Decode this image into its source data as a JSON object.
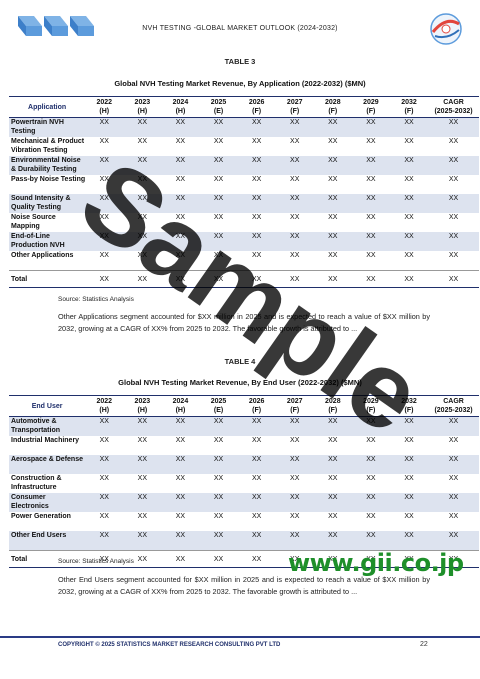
{
  "header": {
    "title": "NVH TESTING -GLOBAL MARKET OUTLOOK (2024-2032)"
  },
  "table3": {
    "label": "TABLE 3",
    "title": "Global NVH Testing Market Revenue, By Application (2022-2032) ($MN)",
    "first_header": "Application",
    "columns": [
      [
        "2022",
        "(H)"
      ],
      [
        "2023",
        "(H)"
      ],
      [
        "2024",
        "(H)"
      ],
      [
        "2025",
        "(E)"
      ],
      [
        "2026",
        "(F)"
      ],
      [
        "2027",
        "(F)"
      ],
      [
        "2028",
        "(F)"
      ],
      [
        "2029",
        "(F)"
      ],
      [
        "2032",
        "(F)"
      ],
      [
        "CAGR",
        "(2025-2032)"
      ]
    ],
    "rows": [
      [
        "Powertrain NVH Testing",
        "XX",
        "XX",
        "XX",
        "XX",
        "XX",
        "XX",
        "XX",
        "XX",
        "XX",
        "XX"
      ],
      [
        "Mechanical & Product Vibration Testing",
        "XX",
        "XX",
        "XX",
        "XX",
        "XX",
        "XX",
        "XX",
        "XX",
        "XX",
        "XX"
      ],
      [
        "Environmental Noise & Durability Testing",
        "XX",
        "XX",
        "XX",
        "XX",
        "XX",
        "XX",
        "XX",
        "XX",
        "XX",
        "XX"
      ],
      [
        "Pass-by Noise Testing",
        "XX",
        "XX",
        "XX",
        "XX",
        "XX",
        "XX",
        "XX",
        "XX",
        "XX",
        "XX"
      ],
      [
        "Sound Intensity & Quality Testing",
        "XX",
        "XX",
        "XX",
        "XX",
        "XX",
        "XX",
        "XX",
        "XX",
        "XX",
        "XX"
      ],
      [
        "Noise Source Mapping",
        "XX",
        "XX",
        "XX",
        "XX",
        "XX",
        "XX",
        "XX",
        "XX",
        "XX",
        "XX"
      ],
      [
        "End-of-Line Production NVH",
        "XX",
        "XX",
        "XX",
        "XX",
        "XX",
        "XX",
        "XX",
        "XX",
        "XX",
        "XX"
      ],
      [
        "Other Applications",
        "XX",
        "XX",
        "XX",
        "XX",
        "XX",
        "XX",
        "XX",
        "XX",
        "XX",
        "XX"
      ]
    ],
    "total": [
      "Total",
      "XX",
      "XX",
      "XX",
      "XX",
      "XX",
      "XX",
      "XX",
      "XX",
      "XX",
      "XX"
    ],
    "source": "Source: Statistics Analysis",
    "paragraph": "Other Applications segment accounted for $XX million in 2025 and is expected to reach a value of $XX million by 2032, growing at a CAGR of XX% from 2025 to 2032. The favorable growth is attributed to ..."
  },
  "table4": {
    "label": "TABLE 4",
    "title": "Global NVH Testing Market Revenue, By End User (2022-2032) ($MN)",
    "first_header": "End User",
    "columns": [
      [
        "2022",
        "(H)"
      ],
      [
        "2023",
        "(H)"
      ],
      [
        "2024",
        "(H)"
      ],
      [
        "2025",
        "(E)"
      ],
      [
        "2026",
        "(F)"
      ],
      [
        "2027",
        "(F)"
      ],
      [
        "2028",
        "(F)"
      ],
      [
        "2029",
        "(F)"
      ],
      [
        "2032",
        "(F)"
      ],
      [
        "CAGR",
        "(2025-2032)"
      ]
    ],
    "rows": [
      [
        "Automotive & Transportation",
        "XX",
        "XX",
        "XX",
        "XX",
        "XX",
        "XX",
        "XX",
        "XX",
        "XX",
        "XX"
      ],
      [
        "Industrial Machinery",
        "XX",
        "XX",
        "XX",
        "XX",
        "XX",
        "XX",
        "XX",
        "XX",
        "XX",
        "XX"
      ],
      [
        "Aerospace & Defense",
        "XX",
        "XX",
        "XX",
        "XX",
        "XX",
        "XX",
        "XX",
        "XX",
        "XX",
        "XX"
      ],
      [
        "Construction & Infrastructure",
        "XX",
        "XX",
        "XX",
        "XX",
        "XX",
        "XX",
        "XX",
        "XX",
        "XX",
        "XX"
      ],
      [
        "Consumer Electronics",
        "XX",
        "XX",
        "XX",
        "XX",
        "XX",
        "XX",
        "XX",
        "XX",
        "XX",
        "XX"
      ],
      [
        "Power Generation",
        "XX",
        "XX",
        "XX",
        "XX",
        "XX",
        "XX",
        "XX",
        "XX",
        "XX",
        "XX"
      ],
      [
        "Other End Users",
        "XX",
        "XX",
        "XX",
        "XX",
        "XX",
        "XX",
        "XX",
        "XX",
        "XX",
        "XX"
      ]
    ],
    "total": [
      "Total",
      "XX",
      "XX",
      "XX",
      "XX",
      "XX",
      "XX",
      "XX",
      "XX",
      "XX",
      "XX"
    ],
    "source": "Source: Statistics Analysis",
    "paragraph": "Other End Users segment accounted for $XX million in 2025 and is expected to reach a value of $XX million by 2032, growing at a CAGR of XX% from 2025 to 2032. The favorable growth is attributed to ..."
  },
  "footer": {
    "copyright": "COPYRIGHT © 2025 STATISTICS MARKET RESEARCH CONSULTING PVT LTD",
    "page": "22"
  },
  "watermark": {
    "text": "Sample"
  },
  "gii": {
    "text": "www.gii.co.jp"
  },
  "colors": {
    "header_rule": "#1f2f6b",
    "row_shade": "#dde3ef",
    "gii_green": "#1e8f2a"
  }
}
